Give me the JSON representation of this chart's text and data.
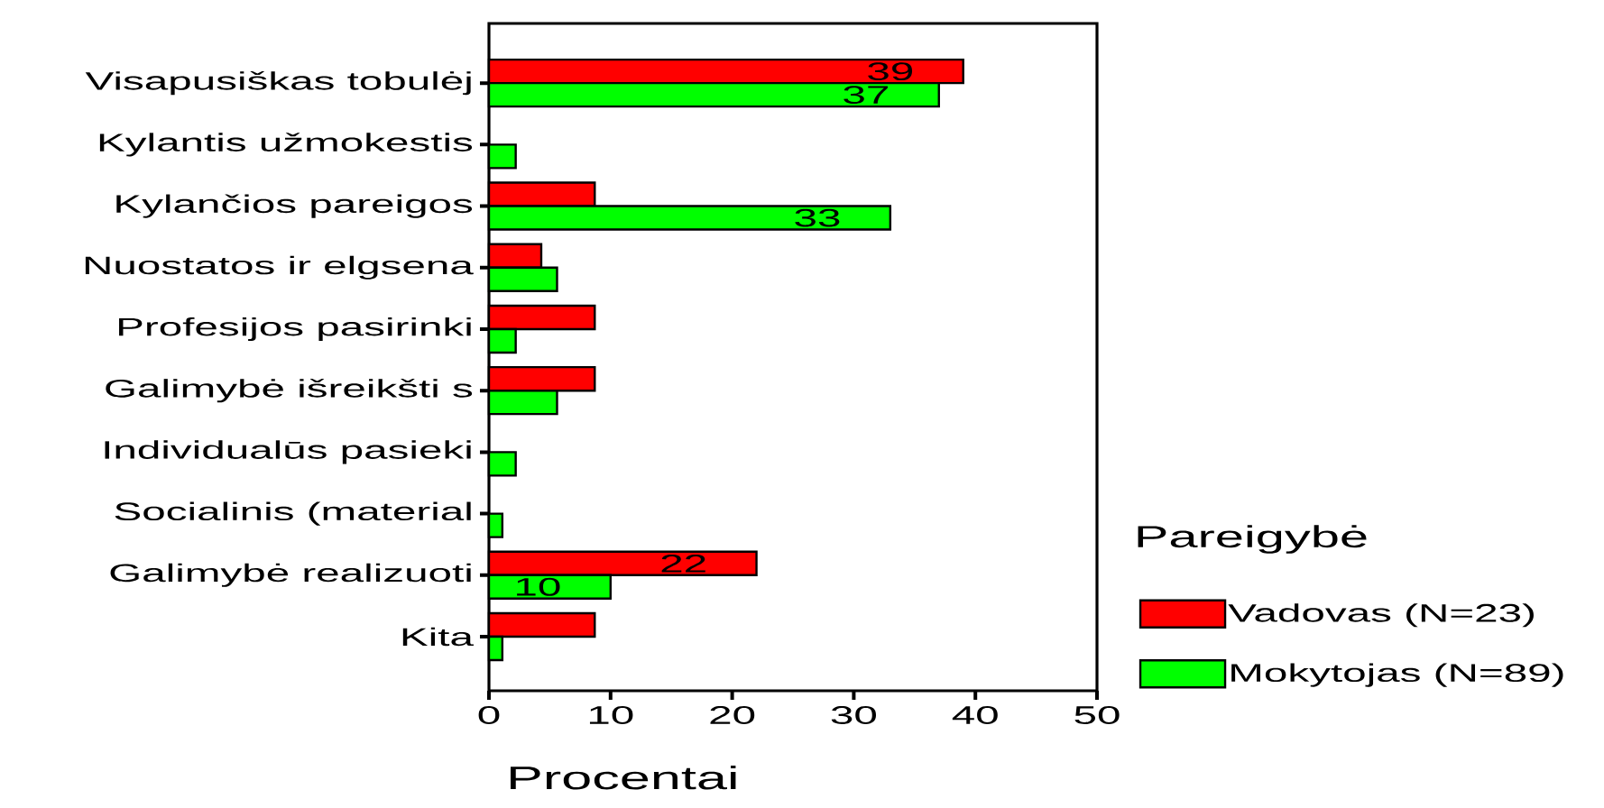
{
  "chart_data": {
    "type": "bar",
    "orientation": "horizontal",
    "categories": [
      "Visapusiškas tobulėj",
      "Kylantis užmokestis",
      "Kylančios pareigos",
      "Nuostatos ir elgsena",
      "Profesijos pasirinki",
      "Galimybė išreikšti s",
      "Individualūs pasieki",
      "Socialinis (material",
      "Galimybė realizuoti",
      "Kita"
    ],
    "series": [
      {
        "name": "Vadovas (N=23)",
        "color": "#ff0000",
        "values": [
          39,
          null,
          8.7,
          4.3,
          8.7,
          8.7,
          null,
          null,
          22,
          8.7
        ],
        "value_labels": [
          "39",
          null,
          null,
          null,
          null,
          null,
          null,
          null,
          "22",
          null
        ]
      },
      {
        "name": "Mokytojas (N=89)",
        "color": "#00ff00",
        "values": [
          37,
          2.2,
          33,
          5.6,
          2.2,
          5.6,
          2.2,
          1.1,
          10,
          1.1
        ],
        "value_labels": [
          "37",
          null,
          "33",
          null,
          null,
          null,
          null,
          null,
          "10",
          null
        ]
      }
    ],
    "xlabel": "Procentai",
    "legend_title": "Pareigybė",
    "legend": "right",
    "xlim": [
      0,
      50
    ],
    "xticks": [
      0,
      10,
      20,
      30,
      40,
      50
    ]
  }
}
